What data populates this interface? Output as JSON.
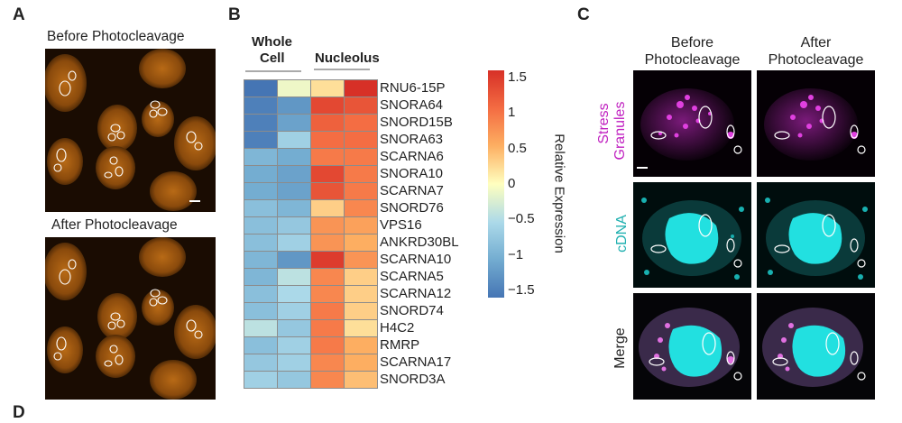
{
  "panel_a": {
    "label": "A",
    "before_title": "Before Photocleavage",
    "after_title": "After Photocleavage"
  },
  "panel_b": {
    "label": "B",
    "group_whole_cell_line1": "Whole",
    "group_whole_cell_line2": "Cell",
    "group_nucleolus": "Nucleolus",
    "colorbar_title": "Relative Expression",
    "colorbar_ticks": [
      "1.5",
      "1",
      "0.5",
      "0",
      "−0.5",
      "−1",
      "−1.5"
    ]
  },
  "panel_c": {
    "label": "C",
    "col_before_line1": "Before",
    "col_before_line2": "Photocleavage",
    "col_after_line1": "After",
    "col_after_line2": "Photocleavage",
    "row_stress_line1": "Stress",
    "row_stress_line2": "Granules",
    "row_cdna": "cDNA",
    "row_merge": "Merge"
  },
  "panel_d": {
    "label": "D"
  },
  "colors": {
    "heatmap_high": "#d73027",
    "heatmap_mid": "#ffffbf",
    "heatmap_low": "#4575b4",
    "stress_magenta": "#c020c0",
    "cdna_cyan": "#20b0b0",
    "microscopy_orange": "#e08a1a"
  },
  "chart_data": {
    "type": "heatmap",
    "columns": [
      "Whole Cell 1",
      "Whole Cell 2",
      "Nucleolus 1",
      "Nucleolus 2"
    ],
    "rows": [
      "RNU6-15P",
      "SNORA64",
      "SNORD15B",
      "SNORA63",
      "SCARNA6",
      "SNORA10",
      "SCARNA7",
      "SNORD76",
      "VPS16",
      "ANKRD30BL",
      "SCARNA10",
      "SCARNA5",
      "SCARNA12",
      "SNORD74",
      "H4C2",
      "RMRP",
      "SCARNA17",
      "SNORD3A"
    ],
    "values": [
      [
        -1.5,
        -0.1,
        0.2,
        1.5
      ],
      [
        -1.4,
        -1.2,
        1.3,
        1.2
      ],
      [
        -1.4,
        -1.1,
        1.1,
        1.0
      ],
      [
        -1.4,
        -0.6,
        1.0,
        1.0
      ],
      [
        -0.9,
        -1.0,
        0.9,
        0.9
      ],
      [
        -1.0,
        -1.1,
        1.3,
        0.9
      ],
      [
        -1.0,
        -1.1,
        1.2,
        0.9
      ],
      [
        -0.8,
        -0.9,
        0.3,
        0.8
      ],
      [
        -0.8,
        -0.7,
        0.7,
        0.6
      ],
      [
        -0.8,
        -0.6,
        0.7,
        0.5
      ],
      [
        -0.9,
        -1.2,
        1.4,
        0.7
      ],
      [
        -0.9,
        -0.4,
        0.8,
        0.3
      ],
      [
        -0.8,
        -0.5,
        0.8,
        0.3
      ],
      [
        -0.8,
        -0.6,
        0.9,
        0.3
      ],
      [
        -0.4,
        -0.7,
        0.9,
        0.2
      ],
      [
        -0.8,
        -0.6,
        0.9,
        0.5
      ],
      [
        -0.7,
        -0.6,
        0.8,
        0.5
      ],
      [
        -0.6,
        -0.7,
        0.8,
        0.4
      ]
    ],
    "colorbar_range": [
      -1.5,
      1.5
    ]
  }
}
